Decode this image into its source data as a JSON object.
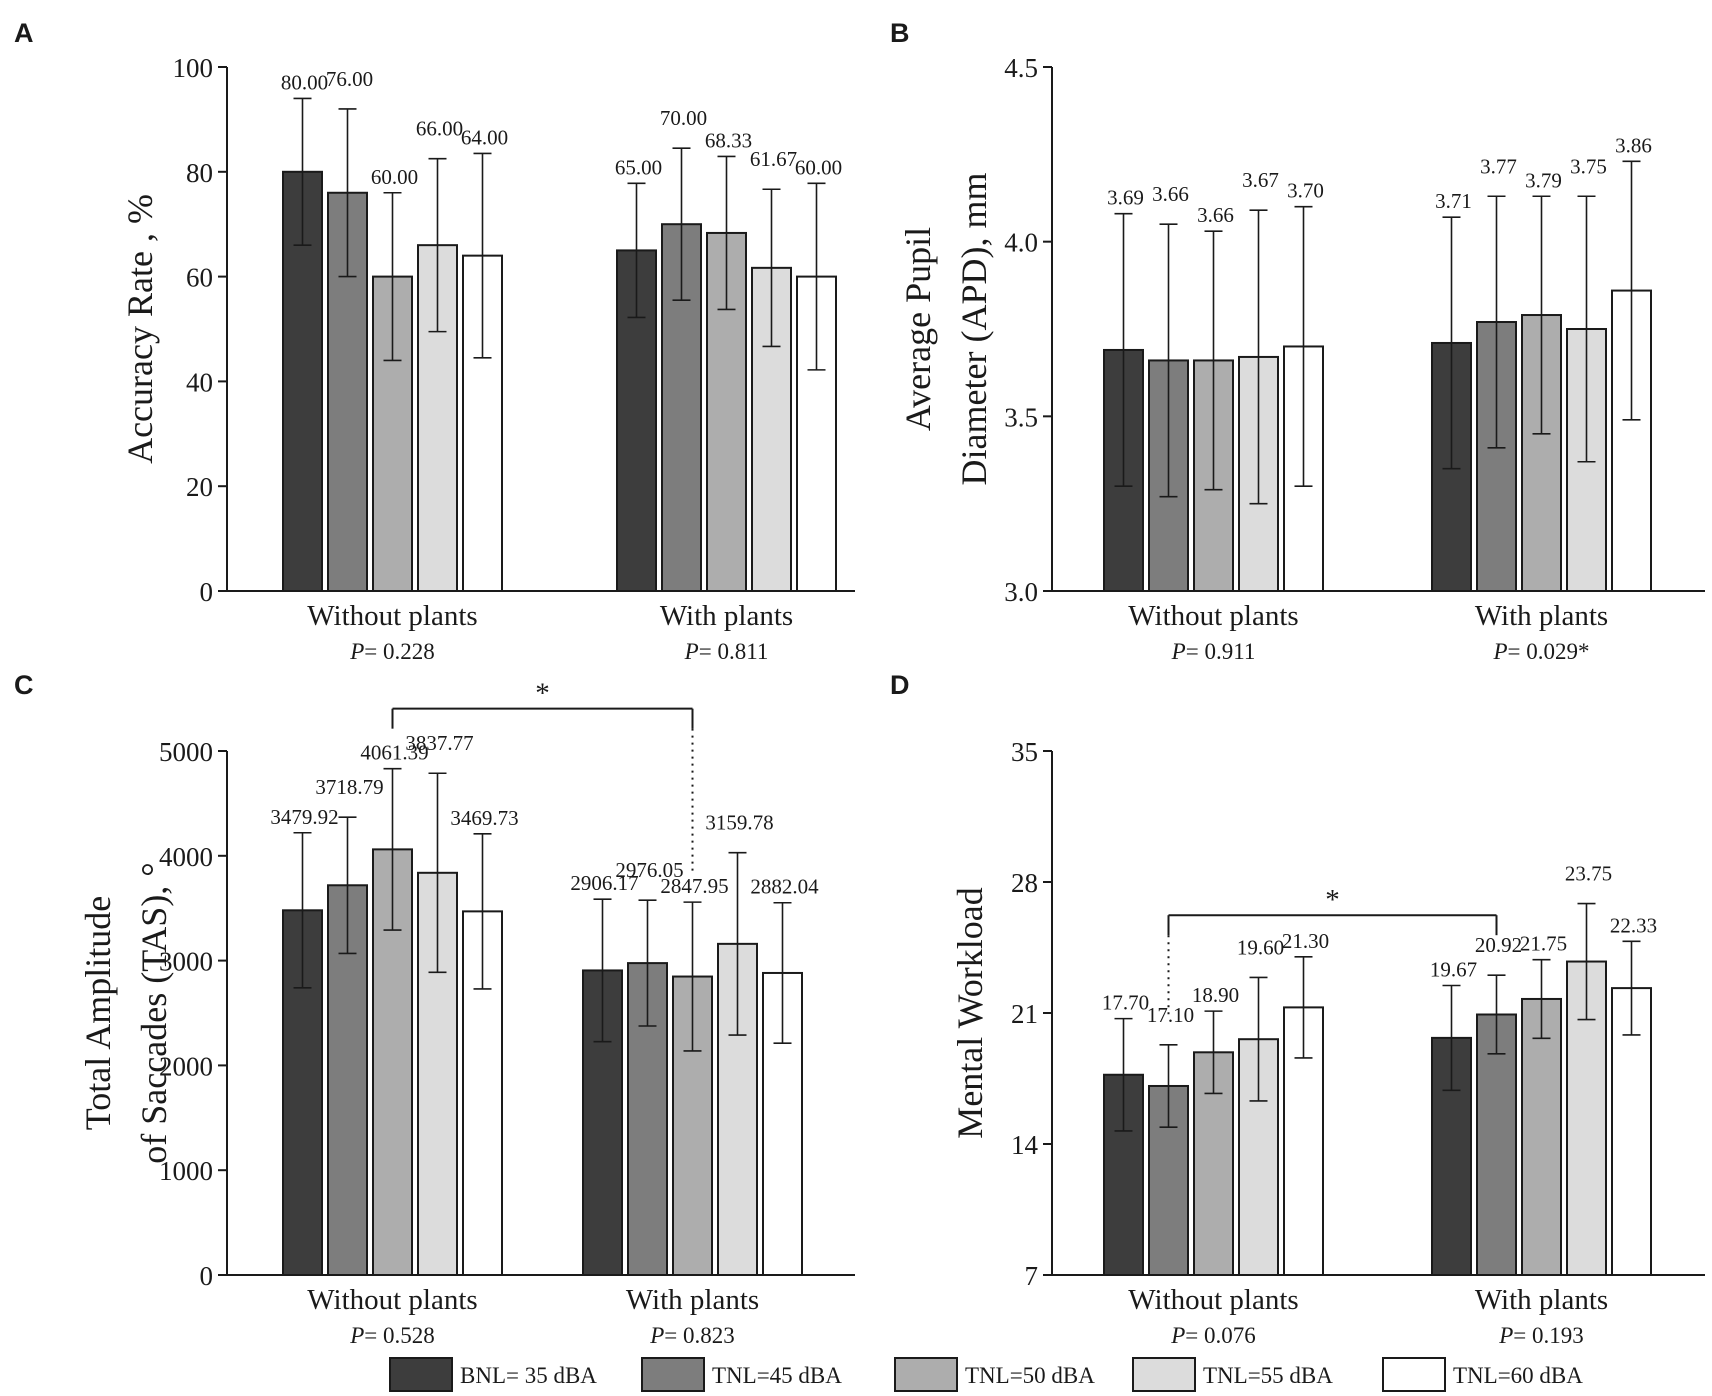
{
  "legend": {
    "items": [
      {
        "label": "BNL= 35 dBA",
        "color": "#3d3d3d"
      },
      {
        "label": "TNL=45 dBA",
        "color": "#7d7d7d"
      },
      {
        "label": "TNL=50 dBA",
        "color": "#adadad"
      },
      {
        "label": "TNL=55 dBA",
        "color": "#dcdcdc"
      },
      {
        "label": "TNL=60 dBA",
        "color": "#ffffff"
      }
    ]
  },
  "chart_data": [
    {
      "panel": "A",
      "type": "bar",
      "ylabel": "Accuracy Rate , %",
      "ylim": [
        0,
        100
      ],
      "yticks": [
        0,
        20,
        40,
        60,
        80,
        100
      ],
      "categories": [
        "Without plants",
        "With plants"
      ],
      "p_values": [
        "= 0.228",
        "= 0.811"
      ],
      "series": [
        {
          "name": "BNL= 35 dBA",
          "values": [
            80.0,
            65.0
          ],
          "errors": [
            14.0,
            12.8
          ],
          "labels": [
            "80.00",
            "65.00"
          ]
        },
        {
          "name": "TNL=45 dBA",
          "values": [
            76.0,
            70.0
          ],
          "errors": [
            16.0,
            14.5
          ],
          "labels": [
            "76.00",
            "70.00"
          ]
        },
        {
          "name": "TNL=50 dBA",
          "values": [
            60.0,
            68.33
          ],
          "errors": [
            16.0,
            14.6
          ],
          "labels": [
            "60.00",
            "68.33"
          ]
        },
        {
          "name": "TNL=55 dBA",
          "values": [
            66.0,
            61.67
          ],
          "errors": [
            16.5,
            15.0
          ],
          "labels": [
            "66.00",
            "61.67"
          ]
        },
        {
          "name": "TNL=60 dBA",
          "values": [
            64.0,
            60.0
          ],
          "errors": [
            19.5,
            17.8
          ],
          "labels": [
            "64.00",
            "60.00"
          ]
        }
      ]
    },
    {
      "panel": "B",
      "type": "bar",
      "ylabel": "Average Pupil\nDiameter (APD), mm",
      "ylim": [
        3.0,
        4.5
      ],
      "yticks": [
        3.0,
        3.5,
        4.0,
        4.5
      ],
      "categories": [
        "Without plants",
        "With plants"
      ],
      "p_values": [
        "= 0.911",
        "= 0.029*"
      ],
      "series": [
        {
          "name": "BNL= 35 dBA",
          "values": [
            3.69,
            3.71
          ],
          "errors": [
            0.39,
            0.36
          ],
          "labels": [
            "3.69",
            "3.71"
          ]
        },
        {
          "name": "TNL=45 dBA",
          "values": [
            3.66,
            3.77
          ],
          "errors": [
            0.39,
            0.36
          ],
          "labels": [
            "3.66",
            "3.77"
          ]
        },
        {
          "name": "TNL=50 dBA",
          "values": [
            3.66,
            3.79
          ],
          "errors": [
            0.37,
            0.34
          ],
          "labels": [
            "3.66",
            "3.79"
          ]
        },
        {
          "name": "TNL=55 dBA",
          "values": [
            3.67,
            3.75
          ],
          "errors": [
            0.42,
            0.38
          ],
          "labels": [
            "3.67",
            "3.75"
          ]
        },
        {
          "name": "TNL=60 dBA",
          "values": [
            3.7,
            3.86
          ],
          "errors": [
            0.4,
            0.37
          ],
          "labels": [
            "3.70",
            "3.86"
          ]
        }
      ]
    },
    {
      "panel": "C",
      "type": "bar",
      "ylabel": "Total Amplitude\nof Saccades (TAS), °",
      "ylim": [
        0,
        5000
      ],
      "yticks": [
        0,
        1000,
        2000,
        3000,
        4000,
        5000
      ],
      "categories": [
        "Without plants",
        "With plants"
      ],
      "p_values": [
        "= 0.528",
        "= 0.823"
      ],
      "significance": {
        "label": "*",
        "from": [
          0,
          2
        ],
        "to": [
          1,
          2
        ]
      },
      "series": [
        {
          "name": "BNL= 35 dBA",
          "values": [
            3479.92,
            2906.17
          ],
          "errors": [
            740,
            680
          ],
          "labels": [
            "3479.92",
            "2906.17"
          ]
        },
        {
          "name": "TNL=45 dBA",
          "values": [
            3718.79,
            2976.05
          ],
          "errors": [
            650,
            600
          ],
          "labels": [
            "3718.79",
            "2976.05"
          ]
        },
        {
          "name": "TNL=50 dBA",
          "values": [
            4061.39,
            2847.95
          ],
          "errors": [
            770,
            710
          ],
          "labels": [
            "4061.39",
            "2847.95"
          ]
        },
        {
          "name": "TNL=55 dBA",
          "values": [
            3837.77,
            3159.78
          ],
          "errors": [
            950,
            870
          ],
          "labels": [
            "3837.77",
            "3159.78"
          ]
        },
        {
          "name": "TNL=60 dBA",
          "values": [
            3469.73,
            2882.04
          ],
          "errors": [
            740,
            670
          ],
          "labels": [
            "3469.73",
            "2882.04"
          ]
        }
      ]
    },
    {
      "panel": "D",
      "type": "bar",
      "ylabel": "Mental Workload",
      "ylim": [
        7,
        35
      ],
      "yticks": [
        7,
        14,
        21,
        28,
        35
      ],
      "categories": [
        "Without plants",
        "With plants"
      ],
      "p_values": [
        "= 0.076",
        "= 0.193"
      ],
      "significance": {
        "label": "*",
        "from": [
          0,
          1
        ],
        "to": [
          1,
          1
        ]
      },
      "series": [
        {
          "name": "BNL= 35 dBA",
          "values": [
            17.7,
            19.67
          ],
          "errors": [
            3.0,
            2.8
          ],
          "labels": [
            "17.70",
            "19.67"
          ]
        },
        {
          "name": "TNL=45 dBA",
          "values": [
            17.1,
            20.92
          ],
          "errors": [
            2.2,
            2.1
          ],
          "labels": [
            "17.10",
            "20.92"
          ]
        },
        {
          "name": "TNL=50 dBA",
          "values": [
            18.9,
            21.75
          ],
          "errors": [
            2.2,
            2.1
          ],
          "labels": [
            "18.90",
            "21.75"
          ]
        },
        {
          "name": "TNL=55 dBA",
          "values": [
            19.6,
            23.75
          ],
          "errors": [
            3.3,
            3.1
          ],
          "labels": [
            "19.60",
            "23.75"
          ]
        },
        {
          "name": "TNL=60 dBA",
          "values": [
            21.3,
            22.33
          ],
          "errors": [
            2.7,
            2.5
          ],
          "labels": [
            "21.30",
            "22.33"
          ]
        }
      ]
    }
  ]
}
